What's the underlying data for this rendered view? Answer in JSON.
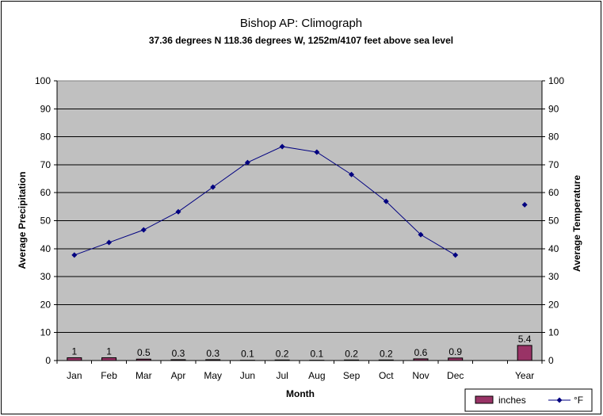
{
  "chart_data": {
    "type": "bar+line",
    "title": "Bishop AP:  Climograph",
    "subtitle": "37.36 degrees N   118.36 degrees W,  1252m/4107 feet above sea level",
    "xlabel": "Month",
    "ylabel_left": "Average Precipitation",
    "ylabel_right": "Average Temperature",
    "categories": [
      "Jan",
      "Feb",
      "Mar",
      "Apr",
      "May",
      "Jun",
      "Jul",
      "Aug",
      "Sep",
      "Oct",
      "Nov",
      "Dec",
      "",
      "Year"
    ],
    "ylim_left": [
      0,
      100
    ],
    "ylim_right": [
      0,
      100
    ],
    "yticks": [
      0,
      10,
      20,
      30,
      40,
      50,
      60,
      70,
      80,
      90,
      100
    ],
    "grid": true,
    "legend_position": "bottom-right",
    "series": [
      {
        "name": "inches",
        "kind": "bar",
        "axis": "left",
        "color": "#993366",
        "values": [
          1,
          1,
          0.5,
          0.3,
          0.3,
          0.1,
          0.2,
          0.1,
          0.2,
          0.2,
          0.6,
          0.9,
          null,
          5.4
        ],
        "labels": [
          "1",
          "1",
          "0.5",
          "0.3",
          "0.3",
          "0.1",
          "0.2",
          "0.1",
          "0.2",
          "0.2",
          "0.6",
          "0.9",
          "",
          "5.4"
        ]
      },
      {
        "name": "°F",
        "kind": "line",
        "axis": "right",
        "color": "#000080",
        "values": [
          37.7,
          42.2,
          46.7,
          53.2,
          62.0,
          70.8,
          76.5,
          74.5,
          66.5,
          56.9,
          45.0,
          37.7,
          null,
          55.7
        ]
      }
    ]
  }
}
